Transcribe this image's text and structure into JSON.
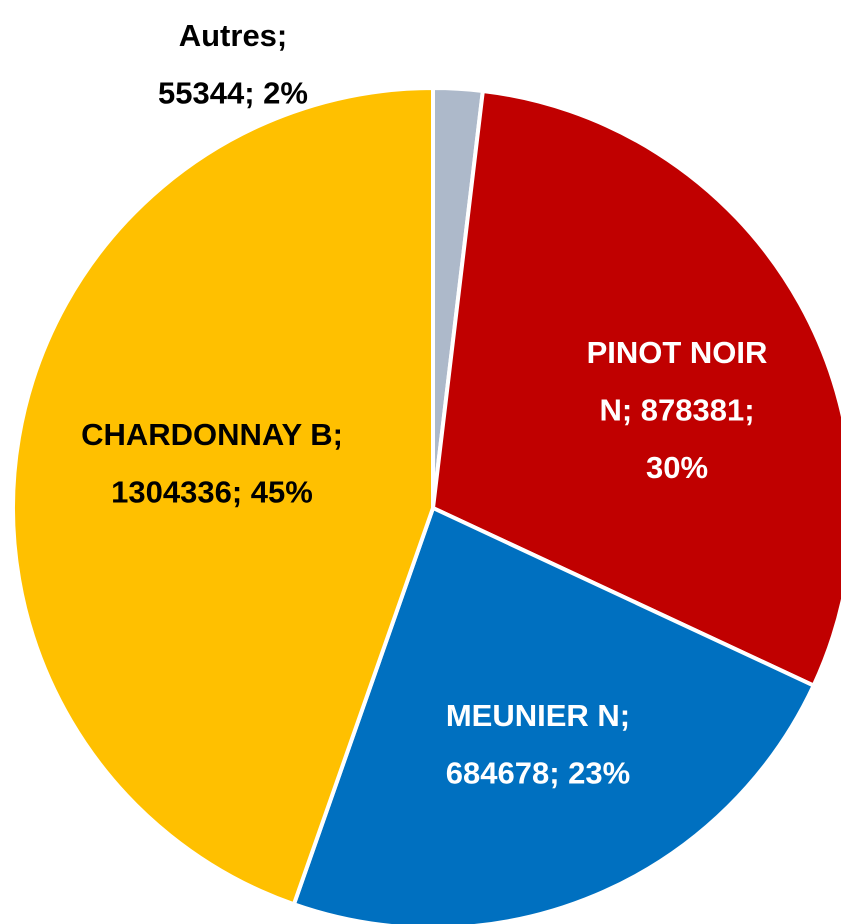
{
  "chart_data": {
    "type": "pie",
    "labels": [
      [
        "Autres;",
        "55344; 2%"
      ],
      [
        "PINOT NOIR",
        "N; 878381;",
        "30%"
      ],
      [
        "MEUNIER N;",
        "684678; 23%"
      ],
      [
        "CHARDONNAY B;",
        "1304336; 45%"
      ]
    ],
    "values": [
      55344,
      878381,
      684678,
      1304336
    ],
    "colors": [
      "#adb9ca",
      "#c00000",
      "#0070c0",
      "#ffc000"
    ]
  }
}
